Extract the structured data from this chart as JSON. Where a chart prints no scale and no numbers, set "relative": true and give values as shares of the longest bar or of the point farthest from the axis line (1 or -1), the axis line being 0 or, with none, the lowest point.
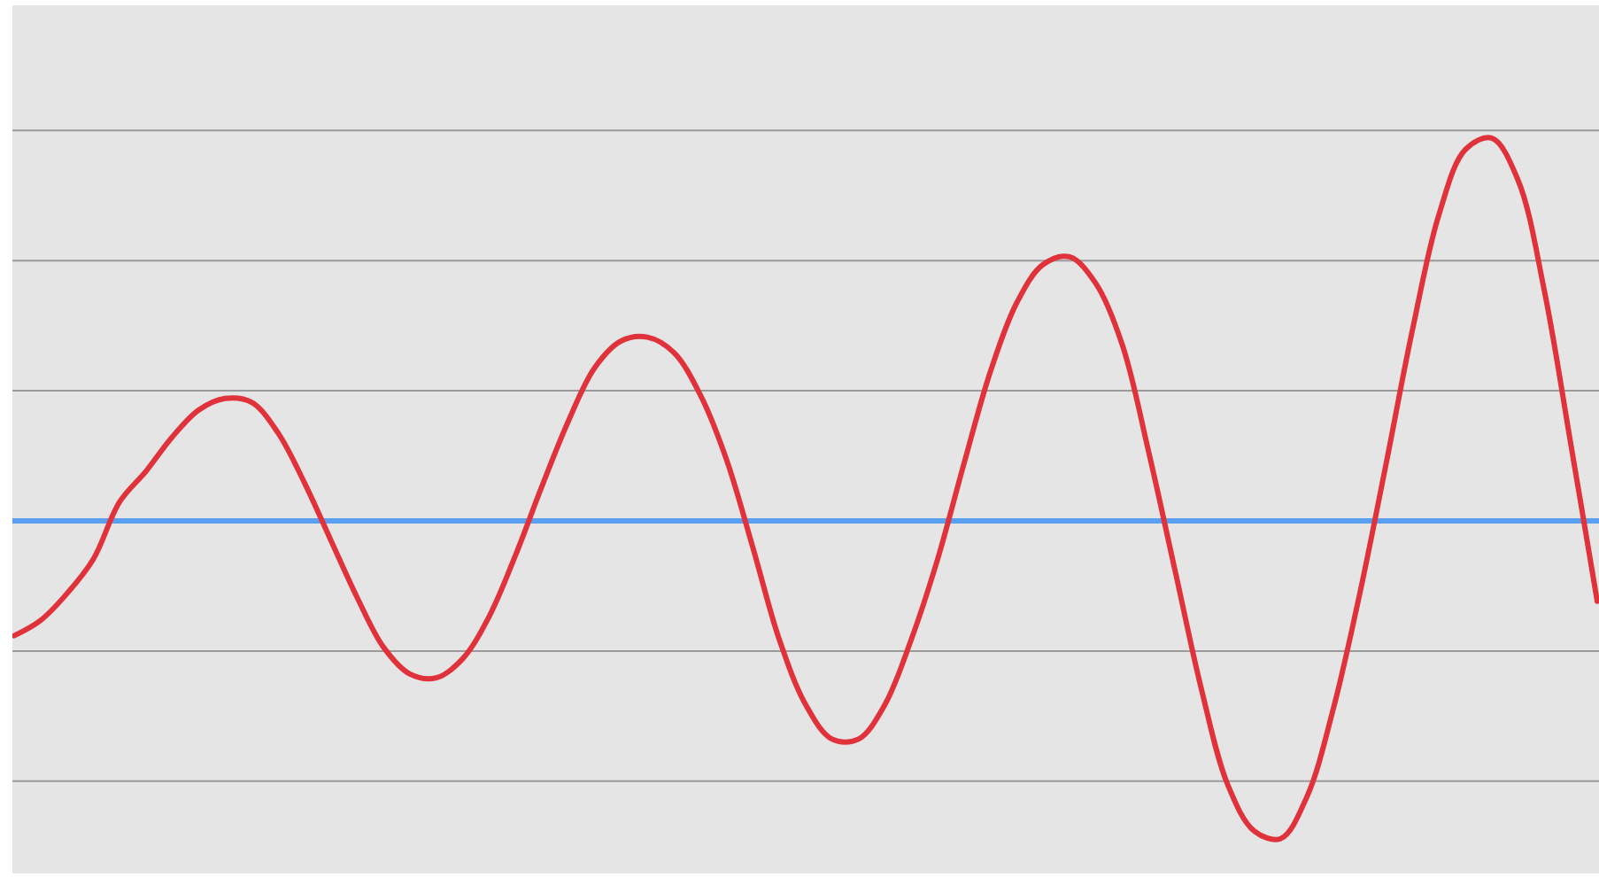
{
  "chart_data": {
    "type": "line",
    "relative": true,
    "categories": [
      null,
      null,
      null,
      null,
      null,
      null,
      null,
      null,
      null,
      null,
      null,
      null,
      null,
      null,
      null,
      null,
      null,
      null,
      null,
      null,
      null,
      null,
      null,
      null,
      null,
      null,
      null,
      null,
      null,
      null,
      null,
      null,
      null,
      null,
      null,
      null,
      null,
      null,
      null,
      null,
      null,
      null,
      null,
      null,
      null,
      null,
      null,
      null,
      null,
      null,
      null,
      null,
      null,
      null,
      null,
      null,
      null,
      null,
      null,
      null,
      null
    ],
    "series": [
      {
        "color": "#e0323a",
        "values": [
          -0.3,
          -0.26,
          -0.19,
          -0.1,
          0.05,
          0.13,
          0.22,
          0.29,
          0.32,
          0.31,
          0.23,
          0.1,
          -0.05,
          -0.2,
          -0.33,
          -0.4,
          -0.41,
          -0.36,
          -0.25,
          -0.09,
          0.09,
          0.26,
          0.4,
          0.47,
          0.48,
          0.44,
          0.33,
          0.16,
          -0.07,
          -0.31,
          -0.48,
          -0.57,
          -0.57,
          -0.48,
          -0.31,
          -0.1,
          0.15,
          0.39,
          0.57,
          0.67,
          0.69,
          0.62,
          0.46,
          0.18,
          -0.13,
          -0.44,
          -0.69,
          -0.81,
          -0.83,
          -0.72,
          -0.49,
          -0.19,
          0.15,
          0.5,
          0.8,
          0.97,
          1.0,
          0.89,
          0.6,
          0.2,
          -0.21
        ]
      }
    ],
    "ref_lines": [
      {
        "axis": "y",
        "value": 1.02,
        "color": "#9a9a9a"
      },
      {
        "axis": "y",
        "value": 0.68,
        "color": "#9a9a9a"
      },
      {
        "axis": "y",
        "value": 0.34,
        "color": "#9a9a9a"
      },
      {
        "axis": "y",
        "value": -0.34,
        "color": "#9a9a9a"
      },
      {
        "axis": "y",
        "value": -0.68,
        "color": "#9a9a9a"
      },
      {
        "axis": "y",
        "value": 0,
        "color": "#5aa0f0"
      }
    ],
    "line_style": "solid",
    "marker": "none"
  }
}
